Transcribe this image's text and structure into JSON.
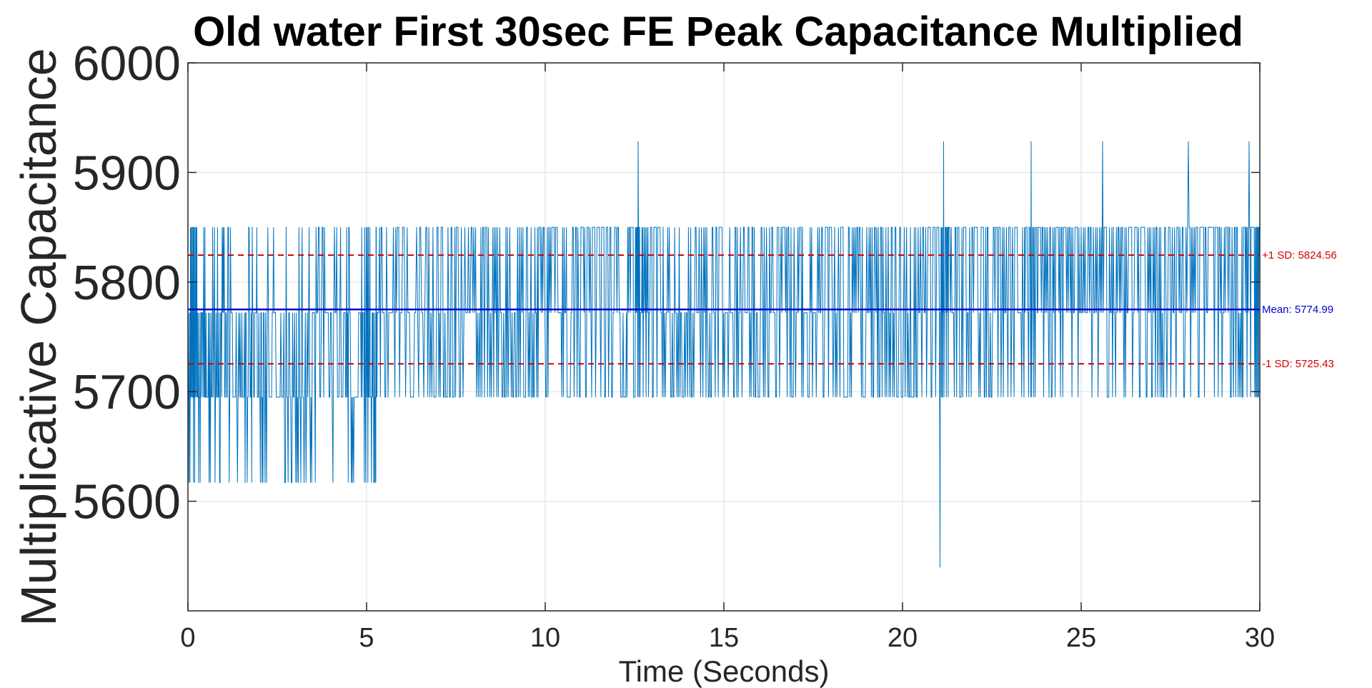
{
  "chart_data": {
    "type": "line",
    "title": "Old water First 30sec FE Peak Capacitance Multiplied",
    "xlabel": "Time (Seconds)",
    "ylabel": "Multiplicative Capacitance",
    "xlim": [
      0,
      30
    ],
    "ylim": [
      5500,
      6000
    ],
    "xticks": [
      0,
      5,
      10,
      15,
      20,
      25,
      30
    ],
    "yticks": [
      5600,
      5700,
      5800,
      5900,
      6000
    ],
    "grid": true,
    "series": [
      {
        "color": "#0072BD",
        "levels": [
          5617,
          5695,
          5772,
          5850,
          5928
        ],
        "x": [
          0.0,
          0.1,
          0.15,
          0.2,
          0.3,
          0.4,
          0.55,
          0.7,
          0.9,
          1.1,
          1.35,
          1.6,
          1.8,
          2.0,
          2.2,
          2.45,
          2.75,
          3.0,
          3.25,
          3.5,
          3.8,
          4.1,
          4.4,
          4.6,
          4.85,
          5.05,
          5.2,
          5.3,
          5.6,
          5.9,
          6.2,
          6.6,
          7.0,
          7.3,
          7.6,
          7.95,
          8.3,
          8.6,
          8.9,
          9.2,
          9.55,
          9.8,
          10.1,
          10.4,
          10.7,
          11.0,
          11.3,
          11.6,
          11.9,
          12.2,
          12.45,
          12.6,
          12.75,
          13.0,
          13.3,
          13.6,
          13.9,
          14.2,
          14.5,
          14.8,
          15.1,
          15.4,
          15.7,
          16.0,
          16.3,
          16.6,
          16.9,
          17.2,
          17.5,
          17.8,
          18.1,
          18.4,
          18.7,
          19.0,
          19.3,
          19.6,
          19.9,
          20.2,
          20.5,
          20.8,
          21.05,
          21.15,
          21.3,
          21.6,
          21.9,
          22.2,
          22.5,
          22.8,
          23.1,
          23.4,
          23.6,
          23.8,
          24.1,
          24.4,
          24.7,
          25.0,
          25.3,
          25.6,
          25.9,
          26.2,
          26.5,
          26.8,
          27.1,
          27.4,
          27.7,
          28.0,
          28.3,
          28.6,
          28.9,
          29.2,
          29.5,
          29.7,
          29.9,
          30.0
        ],
        "y": [
          5772,
          5695,
          5850,
          5772,
          5617,
          5772,
          5695,
          5772,
          5617,
          5695,
          5772,
          5617,
          5850,
          5695,
          5617,
          5772,
          5850,
          5695,
          5617,
          5772,
          5695,
          5850,
          5772,
          5617,
          5695,
          5850,
          5617,
          5772,
          5695,
          5850,
          5772,
          5695,
          5850,
          5772,
          5695,
          5850,
          5695,
          5772,
          5850,
          5695,
          5772,
          5695,
          5850,
          5772,
          5695,
          5850,
          5695,
          5850,
          5772,
          5695,
          5850,
          5928,
          5772,
          5695,
          5850,
          5695,
          5772,
          5850,
          5695,
          5850,
          5772,
          5695,
          5850,
          5695,
          5772,
          5850,
          5695,
          5850,
          5772,
          5695,
          5850,
          5695,
          5772,
          5850,
          5695,
          5850,
          5772,
          5695,
          5850,
          5695,
          5540,
          5928,
          5850,
          5695,
          5772,
          5850,
          5695,
          5850,
          5772,
          5695,
          5928,
          5850,
          5695,
          5850,
          5772,
          5850,
          5695,
          5928,
          5850,
          5695,
          5850,
          5772,
          5850,
          5695,
          5850,
          5928,
          5695,
          5850,
          5772,
          5695,
          5850,
          5928,
          5850,
          5772
        ]
      }
    ],
    "reference_lines": [
      {
        "value": 5824.56,
        "label": "+1 SD: 5824.56",
        "color": "#D00000",
        "style": "dashed"
      },
      {
        "value": 5774.99,
        "label": "Mean: 5774.99",
        "color": "#0000CC",
        "style": "solid"
      },
      {
        "value": 5725.43,
        "label": "-1 SD: 5725.43",
        "color": "#D00000",
        "style": "dashed"
      }
    ]
  }
}
